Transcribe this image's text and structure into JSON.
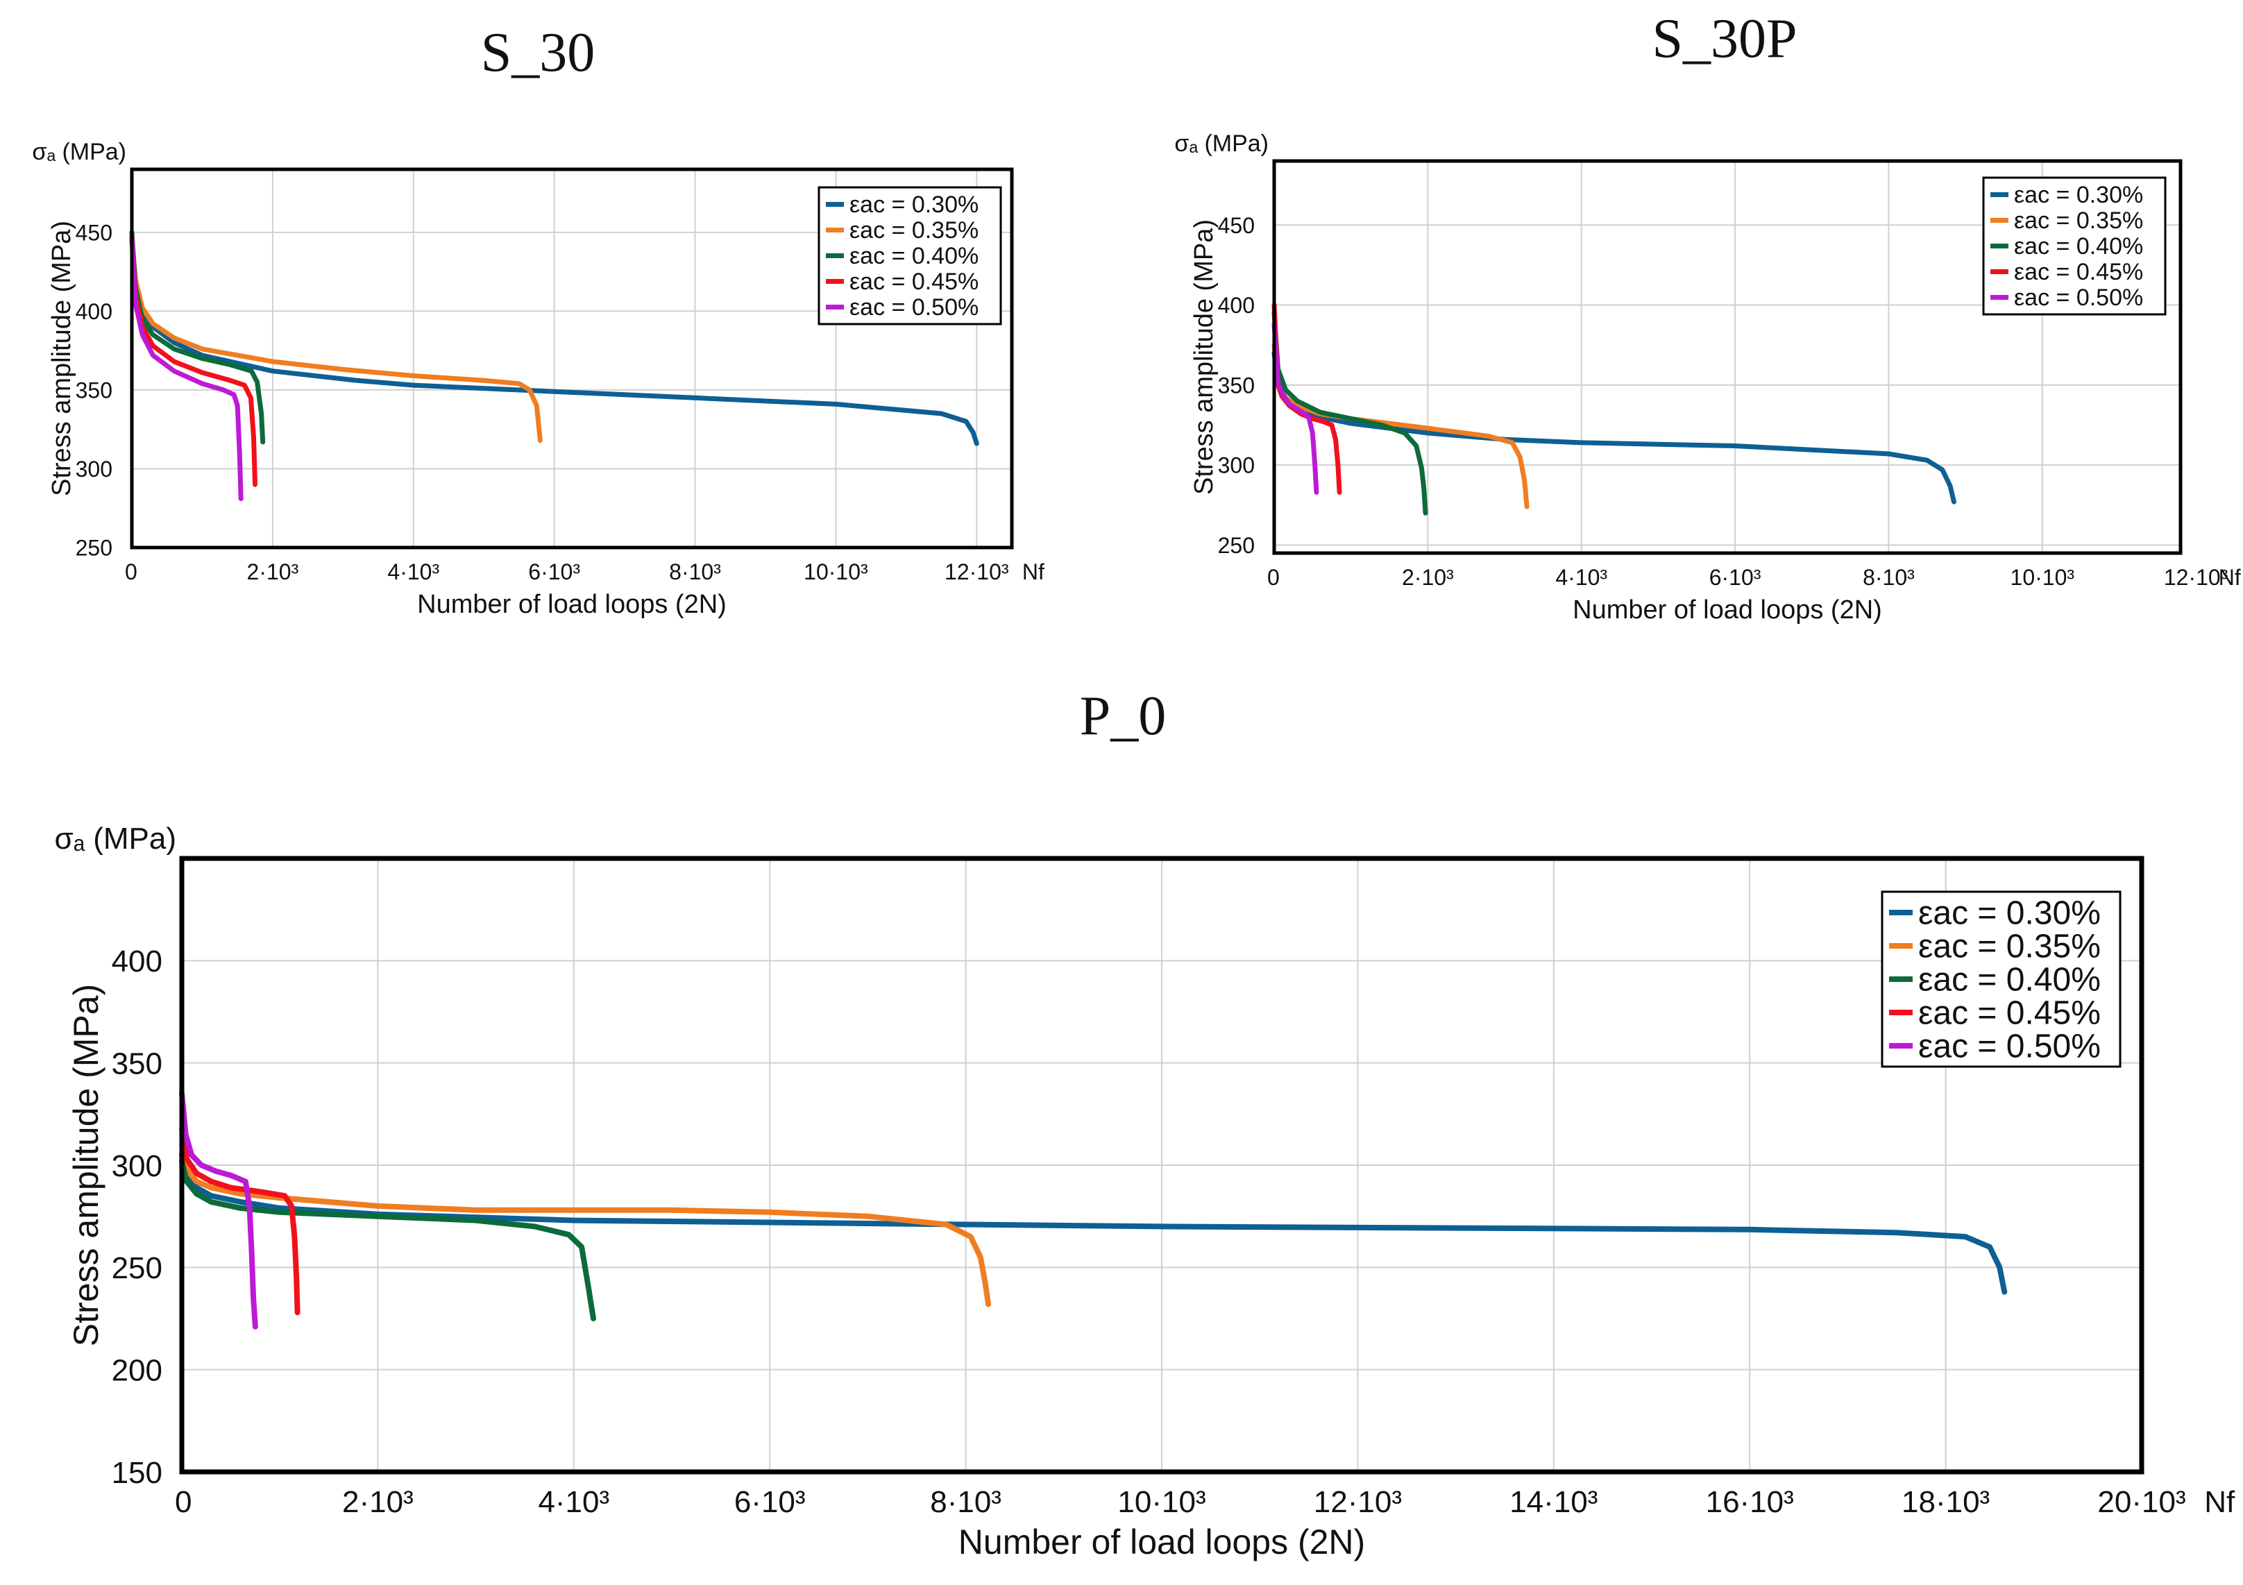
{
  "chart_data": [
    {
      "type": "line",
      "title": "S_30",
      "ylabel": "Stress amplitude (MPa)",
      "yunit": "σₐ (MPa)",
      "xlabel": "Number of load loops (2N)",
      "xunit": "Nf",
      "xlim": [
        0,
        12500
      ],
      "ylim": [
        250,
        490
      ],
      "xticks": [
        0,
        2000,
        4000,
        6000,
        8000,
        10000,
        12000
      ],
      "xtick_labels": [
        "0",
        "2·10³",
        "4·10³",
        "6·10³",
        "8·10³",
        "10·10³",
        "12·10³"
      ],
      "yticks": [
        250,
        300,
        350,
        400,
        450
      ],
      "ytick_labels": [
        "250",
        "300",
        "350",
        "400",
        "450"
      ],
      "grid": true,
      "legend_position": "top-right",
      "series": [
        {
          "name": "εac = 0.30%",
          "color": "#0e5f94",
          "x": [
            0,
            50,
            150,
            300,
            600,
            1000,
            2000,
            3200,
            4000,
            6000,
            8000,
            10000,
            11500,
            11850,
            11950,
            12000
          ],
          "y": [
            445,
            420,
            400,
            390,
            380,
            372,
            362,
            356,
            353,
            349,
            345,
            341,
            335,
            330,
            323,
            316
          ]
        },
        {
          "name": "εac = 0.35%",
          "color": "#f07d20",
          "x": [
            0,
            50,
            150,
            300,
            600,
            1000,
            2000,
            3000,
            4000,
            5000,
            5500,
            5650,
            5750,
            5800
          ],
          "y": [
            447,
            420,
            402,
            392,
            383,
            376,
            368,
            363,
            359,
            356,
            354,
            350,
            340,
            318
          ]
        },
        {
          "name": "εac = 0.40%",
          "color": "#0b6b3a",
          "x": [
            0,
            50,
            150,
            300,
            600,
            1000,
            1400,
            1700,
            1780,
            1840,
            1860
          ],
          "y": [
            450,
            415,
            395,
            385,
            376,
            370,
            366,
            362,
            355,
            335,
            317
          ]
        },
        {
          "name": "εac = 0.45%",
          "color": "#f2101a",
          "x": [
            0,
            50,
            150,
            300,
            600,
            1000,
            1400,
            1600,
            1690,
            1730,
            1750
          ],
          "y": [
            447,
            410,
            390,
            378,
            368,
            361,
            356,
            353,
            345,
            320,
            290
          ]
        },
        {
          "name": "εac = 0.50%",
          "color": "#bd1ad6",
          "x": [
            0,
            50,
            150,
            300,
            600,
            1000,
            1300,
            1450,
            1500,
            1530,
            1550
          ],
          "y": [
            445,
            405,
            385,
            372,
            362,
            354,
            350,
            347,
            340,
            310,
            281
          ]
        }
      ]
    },
    {
      "type": "line",
      "title": "S_30P",
      "ylabel": "Stress amplitude (MPa)",
      "yunit": "σₐ (MPa)",
      "xlabel": "Number of load loops (2N)",
      "xunit": "Nf",
      "xlim": [
        0,
        11800
      ],
      "ylim": [
        245,
        490
      ],
      "xticks": [
        0,
        2000,
        4000,
        6000,
        8000,
        10000,
        12000
      ],
      "xtick_labels": [
        "0",
        "2·10³",
        "4·10³",
        "6·10³",
        "8·10³",
        "10·10³",
        "12·10³"
      ],
      "yticks": [
        250,
        300,
        350,
        400,
        450
      ],
      "ytick_labels": [
        "250",
        "300",
        "350",
        "400",
        "450"
      ],
      "grid": true,
      "legend_position": "top-right",
      "series": [
        {
          "name": "εac = 0.30%",
          "color": "#0e5f94",
          "x": [
            0,
            50,
            150,
            300,
            600,
            1000,
            2000,
            3000,
            4000,
            6000,
            8000,
            8500,
            8700,
            8800,
            8850
          ],
          "y": [
            370,
            350,
            340,
            335,
            330,
            326,
            320,
            316,
            314,
            312,
            307,
            303,
            297,
            287,
            277
          ]
        },
        {
          "name": "εac = 0.35%",
          "color": "#f07d20",
          "x": [
            0,
            50,
            150,
            300,
            600,
            1000,
            2000,
            2800,
            3100,
            3200,
            3260,
            3290
          ],
          "y": [
            375,
            352,
            342,
            337,
            332,
            329,
            323,
            318,
            314,
            305,
            290,
            274
          ]
        },
        {
          "name": "εac = 0.40%",
          "color": "#0b6b3a",
          "x": [
            0,
            50,
            150,
            300,
            600,
            1000,
            1400,
            1700,
            1850,
            1920,
            1950,
            1970
          ],
          "y": [
            395,
            360,
            347,
            340,
            333,
            329,
            325,
            320,
            312,
            298,
            285,
            270
          ]
        },
        {
          "name": "εac = 0.45%",
          "color": "#f2101a",
          "x": [
            0,
            50,
            100,
            200,
            350,
            500,
            650,
            750,
            800,
            830,
            850
          ],
          "y": [
            400,
            350,
            343,
            337,
            332,
            329,
            327,
            325,
            316,
            300,
            283
          ]
        },
        {
          "name": "εac = 0.50%",
          "color": "#bd1ad6",
          "x": [
            0,
            50,
            100,
            200,
            300,
            400,
            450,
            500,
            530,
            550
          ],
          "y": [
            388,
            352,
            345,
            338,
            335,
            332,
            330,
            320,
            300,
            283
          ]
        }
      ]
    },
    {
      "type": "line",
      "title": "P_0",
      "ylabel": "Stress amplitude (MPa)",
      "yunit": "σₐ (MPa)",
      "xlabel": "Number of load loops (2N)",
      "xunit": "Nf",
      "xlim": [
        0,
        20000
      ],
      "ylim": [
        150,
        450
      ],
      "xticks": [
        0,
        2000,
        4000,
        6000,
        8000,
        10000,
        12000,
        14000,
        16000,
        18000,
        20000
      ],
      "xtick_labels": [
        "0",
        "2·10³",
        "4·10³",
        "6·10³",
        "8·10³",
        "10·10³",
        "12·10³",
        "14·10³",
        "16·10³",
        "18·10³",
        "20·10³"
      ],
      "yticks": [
        150,
        200,
        250,
        300,
        350,
        400
      ],
      "ytick_labels": [
        "150",
        "200",
        "250",
        "300",
        "350",
        "400"
      ],
      "grid": true,
      "legend_position": "top-right",
      "series": [
        {
          "name": "εac = 0.30%",
          "color": "#0e5f94",
          "x": [
            0,
            50,
            150,
            300,
            600,
            1000,
            2000,
            4000,
            6000,
            8000,
            10000,
            12000,
            14000,
            16000,
            17500,
            18200,
            18450,
            18550,
            18600
          ],
          "y": [
            305,
            295,
            289,
            285,
            282,
            279,
            276,
            273,
            272,
            271,
            270,
            269.5,
            269,
            268.5,
            267,
            265,
            260,
            250,
            238
          ]
        },
        {
          "name": "εac = 0.35%",
          "color": "#f07d20",
          "x": [
            0,
            50,
            150,
            300,
            600,
            1000,
            2000,
            3000,
            5000,
            6000,
            7000,
            7800,
            8050,
            8150,
            8200,
            8230
          ],
          "y": [
            310,
            298,
            292,
            289,
            286,
            284,
            280,
            278,
            278,
            277,
            275,
            271,
            265,
            255,
            242,
            232
          ]
        },
        {
          "name": "εac = 0.40%",
          "color": "#0b6b3a",
          "x": [
            0,
            50,
            150,
            300,
            600,
            1000,
            2000,
            3000,
            3600,
            3950,
            4080,
            4150,
            4200
          ],
          "y": [
            302,
            292,
            286,
            282,
            279,
            277,
            275,
            273,
            270,
            266,
            260,
            240,
            225
          ]
        },
        {
          "name": "εac = 0.45%",
          "color": "#f2101a",
          "x": [
            0,
            50,
            150,
            300,
            500,
            800,
            1050,
            1120,
            1150,
            1170,
            1180
          ],
          "y": [
            318,
            303,
            296,
            292,
            289,
            287,
            285,
            280,
            265,
            245,
            228
          ]
        },
        {
          "name": "εac = 0.50%",
          "color": "#bd1ad6",
          "x": [
            0,
            40,
            100,
            200,
            350,
            500,
            650,
            690,
            710,
            730,
            750
          ],
          "y": [
            335,
            315,
            305,
            300,
            297,
            295,
            292,
            280,
            260,
            235,
            221
          ]
        }
      ]
    }
  ]
}
